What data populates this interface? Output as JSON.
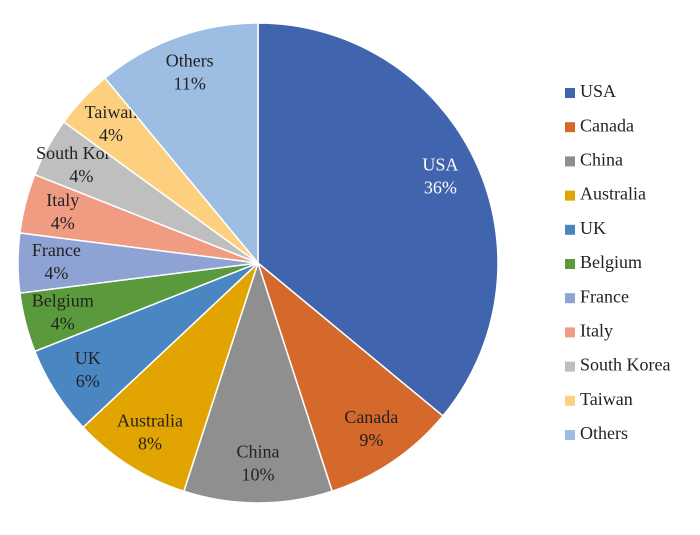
{
  "chart_data": {
    "type": "pie",
    "categories": [
      "USA",
      "Canada",
      "China",
      "Australia",
      "UK",
      "Belgium",
      "France",
      "Italy",
      "South Korea",
      "Taiwan",
      "Others"
    ],
    "values": [
      36,
      9,
      10,
      8,
      6,
      4,
      4,
      4,
      4,
      4,
      11
    ],
    "value_labels": [
      "36%",
      "9%",
      "10%",
      "8%",
      "6%",
      "4%",
      "4%",
      "4%",
      "4%",
      "4%",
      "11%"
    ],
    "colors": [
      "#4064ad",
      "#d5692b",
      "#8f8f8f",
      "#e2a400",
      "#4a86c1",
      "#5a9a3c",
      "#8fa2d4",
      "#ef9c82",
      "#bfbfbf",
      "#fdd080",
      "#9dbde2"
    ],
    "legend": "right"
  }
}
